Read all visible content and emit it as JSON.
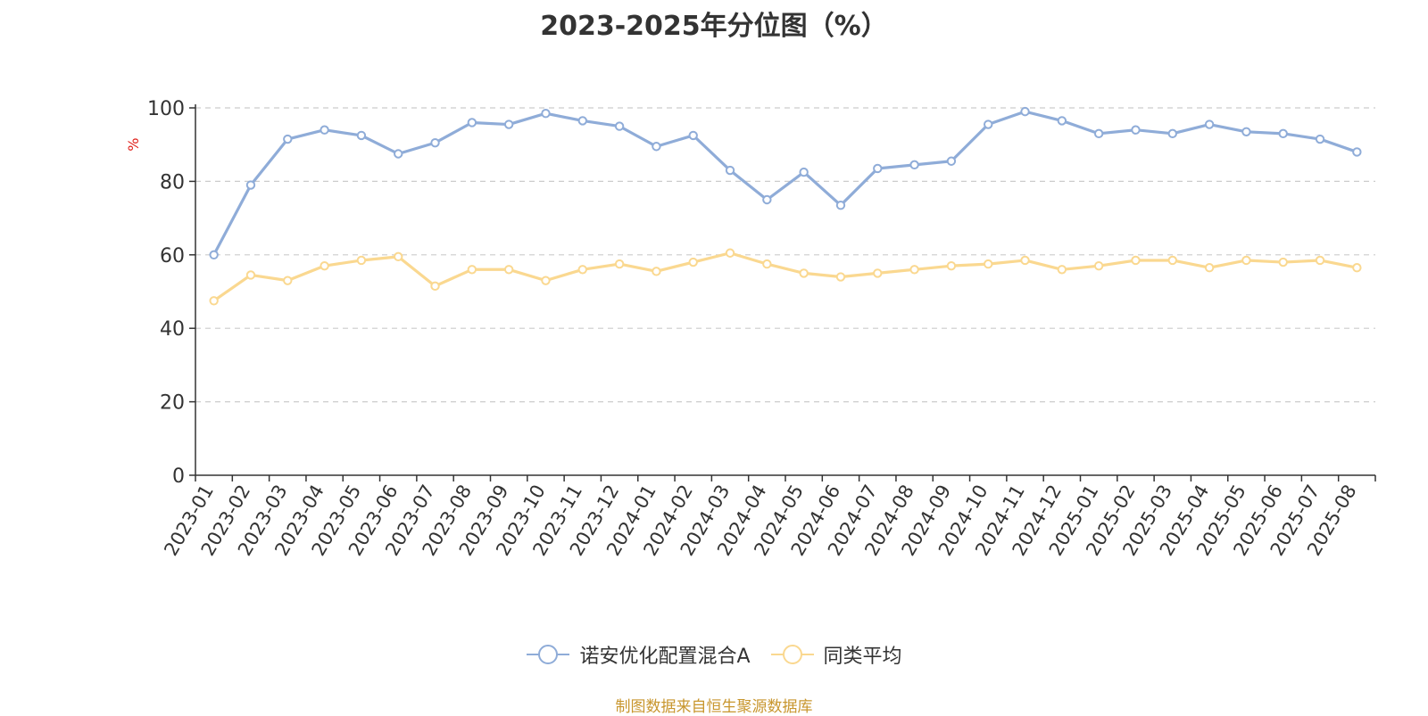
{
  "title": "2023-2025年分位图（%）",
  "source_note": "制图数据来自恒生聚源数据库",
  "colors": {
    "series_fund": "#8facd8",
    "series_avg": "#fad890",
    "axis": "#333333",
    "grid": "#cccccc",
    "unit_label": "#e0201a",
    "source_text": "#c8962e",
    "title_text": "#333333"
  },
  "legend": {
    "items": [
      {
        "label": "诺安优化配置混合A",
        "icon": "circle-line-icon"
      },
      {
        "label": "同类平均",
        "icon": "circle-line-icon"
      }
    ]
  },
  "chart_data": {
    "type": "line",
    "title": "2023-2025年分位图（%）",
    "xlabel": "",
    "ylabel": "%",
    "ylim": [
      0,
      100
    ],
    "yticks": [
      0,
      20,
      40,
      60,
      80,
      100
    ],
    "grid": true,
    "legend_position": "bottom-center",
    "categories": [
      "2023-01",
      "2023-02",
      "2023-03",
      "2023-04",
      "2023-05",
      "2023-06",
      "2023-07",
      "2023-08",
      "2023-09",
      "2023-10",
      "2023-11",
      "2023-12",
      "2024-01",
      "2024-02",
      "2024-03",
      "2024-04",
      "2024-05",
      "2024-06",
      "2024-07",
      "2024-08",
      "2024-09",
      "2024-10",
      "2024-11",
      "2024-12",
      "2025-01",
      "2025-02",
      "2025-03",
      "2025-04",
      "2025-05",
      "2025-06",
      "2025-07",
      "2025-08"
    ],
    "series": [
      {
        "name": "诺安优化配置混合A",
        "color": "#8facd8",
        "values": [
          60,
          79,
          91.5,
          94,
          92.5,
          87.5,
          90.5,
          96,
          95.5,
          98.5,
          96.5,
          95,
          89.5,
          92.5,
          83,
          75,
          82.5,
          73.5,
          83.5,
          84.5,
          85.5,
          95.5,
          99,
          96.5,
          93,
          94,
          93,
          95.5,
          93.5,
          93,
          91.5,
          88
        ]
      },
      {
        "name": "同类平均",
        "color": "#fad890",
        "values": [
          47.5,
          54.5,
          53,
          57,
          58.5,
          59.5,
          51.5,
          56,
          56,
          53,
          56,
          57.5,
          55.5,
          58,
          60.5,
          57.5,
          55,
          54,
          55,
          56,
          57,
          57.5,
          58.5,
          56,
          57,
          58.5,
          58.5,
          56.5,
          58.5,
          58,
          58.5,
          56.5
        ]
      }
    ]
  }
}
